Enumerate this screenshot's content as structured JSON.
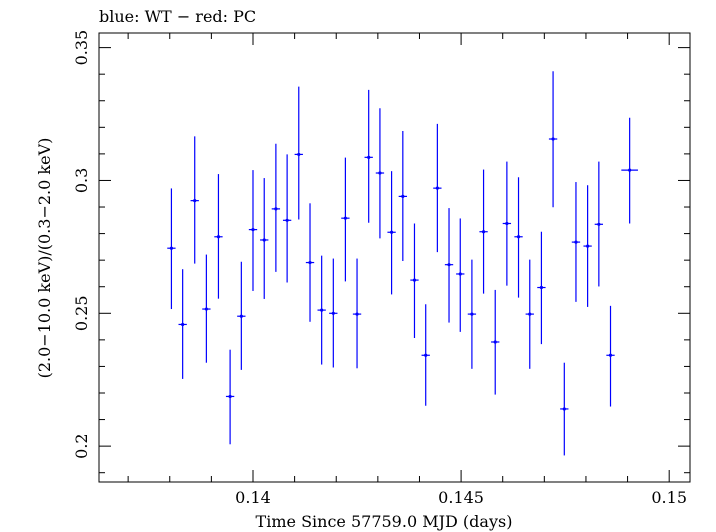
{
  "chart_data": {
    "type": "scatter",
    "title": "blue: WT − red: PC",
    "xlabel": "Time Since 57759.0 MJD (days)",
    "ylabel": "(2.0−10.0 keV)/(0.3−2.0 keV)",
    "xlim": [
      0.1363,
      0.1505
    ],
    "ylim": [
      0.1865,
      0.3555
    ],
    "x_ticks": [
      0.14,
      0.145,
      0.15
    ],
    "x_tick_labels": [
      "0.14",
      "0.145",
      "0.15"
    ],
    "y_ticks": [
      0.2,
      0.25,
      0.3,
      0.35
    ],
    "y_tick_labels": [
      "0.2",
      "0.25",
      "0.3",
      "0.35"
    ],
    "grid": false,
    "colors": {
      "WT": "#0000ff",
      "PC": "#ff0000",
      "axes": "#000000"
    },
    "series": [
      {
        "name": "WT",
        "color": "#0000ff",
        "points": [
          {
            "x": 0.13804,
            "y": 0.2745,
            "ylo": 0.2516,
            "yhi": 0.297,
            "xerr": 0.0001
          },
          {
            "x": 0.13831,
            "y": 0.2458,
            "ylo": 0.2253,
            "yhi": 0.2666,
            "xerr": 0.0001
          },
          {
            "x": 0.1386,
            "y": 0.2924,
            "ylo": 0.2687,
            "yhi": 0.3166,
            "xerr": 0.0001
          },
          {
            "x": 0.13888,
            "y": 0.2516,
            "ylo": 0.2314,
            "yhi": 0.2721,
            "xerr": 0.0001
          },
          {
            "x": 0.13917,
            "y": 0.2788,
            "ylo": 0.2555,
            "yhi": 0.3024,
            "xerr": 0.0001
          },
          {
            "x": 0.13945,
            "y": 0.2187,
            "ylo": 0.2007,
            "yhi": 0.2363,
            "xerr": 0.0001
          },
          {
            "x": 0.13972,
            "y": 0.2489,
            "ylo": 0.2287,
            "yhi": 0.2694,
            "xerr": 0.0001
          },
          {
            "x": 0.14,
            "y": 0.2815,
            "ylo": 0.2584,
            "yhi": 0.3039,
            "xerr": 0.0001
          },
          {
            "x": 0.14027,
            "y": 0.2776,
            "ylo": 0.2554,
            "yhi": 0.3009,
            "xerr": 0.0001
          },
          {
            "x": 0.14055,
            "y": 0.2893,
            "ylo": 0.2656,
            "yhi": 0.3138,
            "xerr": 0.0001
          },
          {
            "x": 0.14082,
            "y": 0.285,
            "ylo": 0.2616,
            "yhi": 0.3098,
            "xerr": 0.0001
          },
          {
            "x": 0.1411,
            "y": 0.3098,
            "ylo": 0.2853,
            "yhi": 0.3353,
            "xerr": 0.0001
          },
          {
            "x": 0.14137,
            "y": 0.2691,
            "ylo": 0.2468,
            "yhi": 0.2914,
            "xerr": 0.0001
          },
          {
            "x": 0.14165,
            "y": 0.2512,
            "ylo": 0.2307,
            "yhi": 0.2717,
            "xerr": 0.0001
          },
          {
            "x": 0.14193,
            "y": 0.25,
            "ylo": 0.2296,
            "yhi": 0.2706,
            "xerr": 0.0001
          },
          {
            "x": 0.14222,
            "y": 0.2858,
            "ylo": 0.262,
            "yhi": 0.3086,
            "xerr": 0.0001
          },
          {
            "x": 0.1425,
            "y": 0.2497,
            "ylo": 0.2293,
            "yhi": 0.2706,
            "xerr": 0.0001
          },
          {
            "x": 0.14278,
            "y": 0.3087,
            "ylo": 0.2841,
            "yhi": 0.3341,
            "xerr": 0.0001
          },
          {
            "x": 0.14305,
            "y": 0.3028,
            "ylo": 0.2782,
            "yhi": 0.3272,
            "xerr": 0.0001
          },
          {
            "x": 0.14333,
            "y": 0.2805,
            "ylo": 0.2571,
            "yhi": 0.3035,
            "xerr": 0.0001
          },
          {
            "x": 0.1436,
            "y": 0.294,
            "ylo": 0.2697,
            "yhi": 0.3186,
            "xerr": 0.0001
          },
          {
            "x": 0.14388,
            "y": 0.2625,
            "ylo": 0.2407,
            "yhi": 0.2838,
            "xerr": 0.0001
          },
          {
            "x": 0.14415,
            "y": 0.2342,
            "ylo": 0.2152,
            "yhi": 0.2534,
            "xerr": 0.0001
          },
          {
            "x": 0.14443,
            "y": 0.2971,
            "ylo": 0.273,
            "yhi": 0.3213,
            "xerr": 0.0001
          },
          {
            "x": 0.14471,
            "y": 0.2683,
            "ylo": 0.2465,
            "yhi": 0.2896,
            "xerr": 0.0001
          },
          {
            "x": 0.14498,
            "y": 0.2648,
            "ylo": 0.243,
            "yhi": 0.2857,
            "xerr": 0.0001
          },
          {
            "x": 0.14526,
            "y": 0.2497,
            "ylo": 0.2291,
            "yhi": 0.2702,
            "xerr": 0.0001
          },
          {
            "x": 0.14554,
            "y": 0.2807,
            "ylo": 0.2574,
            "yhi": 0.3041,
            "xerr": 0.0001
          },
          {
            "x": 0.14582,
            "y": 0.2392,
            "ylo": 0.2194,
            "yhi": 0.2588,
            "xerr": 0.0001
          },
          {
            "x": 0.1461,
            "y": 0.2838,
            "ylo": 0.2604,
            "yhi": 0.3071,
            "xerr": 0.0001
          },
          {
            "x": 0.14638,
            "y": 0.2788,
            "ylo": 0.2559,
            "yhi": 0.3012,
            "xerr": 0.0001
          },
          {
            "x": 0.14665,
            "y": 0.2497,
            "ylo": 0.2291,
            "yhi": 0.2702,
            "xerr": 0.0001
          },
          {
            "x": 0.14693,
            "y": 0.2597,
            "ylo": 0.2384,
            "yhi": 0.2807,
            "xerr": 0.0001
          },
          {
            "x": 0.14721,
            "y": 0.3156,
            "ylo": 0.2899,
            "yhi": 0.3411,
            "xerr": 0.0001
          },
          {
            "x": 0.14748,
            "y": 0.214,
            "ylo": 0.1965,
            "yhi": 0.2314,
            "xerr": 0.0001
          },
          {
            "x": 0.14776,
            "y": 0.2768,
            "ylo": 0.2543,
            "yhi": 0.2994,
            "xerr": 0.0001
          },
          {
            "x": 0.14804,
            "y": 0.2753,
            "ylo": 0.2524,
            "yhi": 0.2982,
            "xerr": 0.0001
          },
          {
            "x": 0.14831,
            "y": 0.2835,
            "ylo": 0.2601,
            "yhi": 0.3071,
            "xerr": 0.0001
          },
          {
            "x": 0.14859,
            "y": 0.2342,
            "ylo": 0.2149,
            "yhi": 0.2528,
            "xerr": 0.0001
          },
          {
            "x": 0.14905,
            "y": 0.3039,
            "ylo": 0.2838,
            "yhi": 0.3236,
            "xerr": 0.0002
          }
        ]
      }
    ]
  }
}
